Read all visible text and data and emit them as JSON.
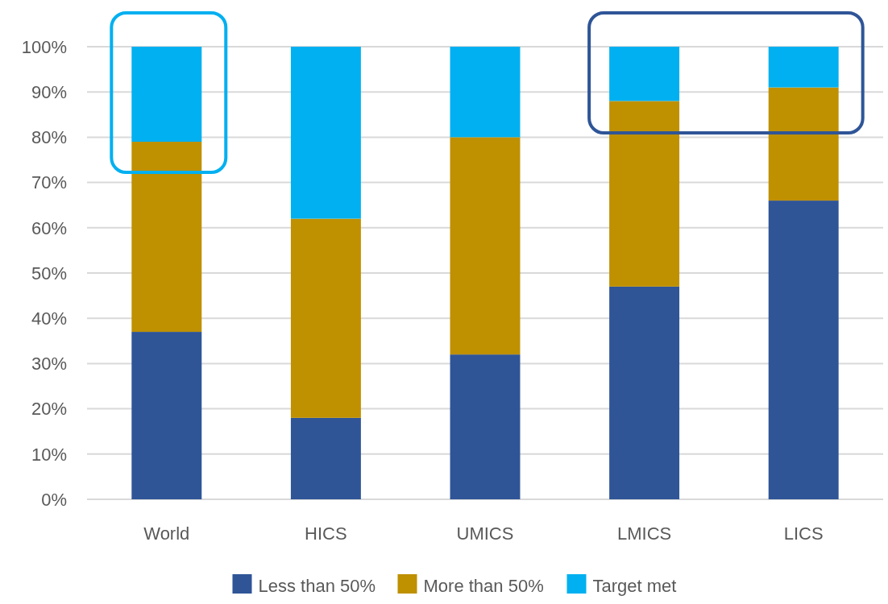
{
  "chart_data": {
    "type": "bar",
    "stacked": true,
    "categories": [
      "World",
      "HICS",
      "UMICS",
      "LMICS",
      "LICS"
    ],
    "series": [
      {
        "name": "Less than 50%",
        "color": "#2f5597",
        "values": [
          37,
          18,
          32,
          47,
          66
        ]
      },
      {
        "name": "More than 50%",
        "color": "#bf9000",
        "values": [
          42,
          44,
          48,
          41,
          25
        ]
      },
      {
        "name": "Target met",
        "color": "#00b0f0",
        "values": [
          21,
          38,
          20,
          12,
          9
        ]
      }
    ],
    "ylim": [
      0,
      100
    ],
    "yticks": [
      {
        "value": 0,
        "label": "0%"
      },
      {
        "value": 10,
        "label": "10%"
      },
      {
        "value": 20,
        "label": "20%"
      },
      {
        "value": 30,
        "label": "30%"
      },
      {
        "value": 40,
        "label": "40%"
      },
      {
        "value": 50,
        "label": "50%"
      },
      {
        "value": 60,
        "label": "60%"
      },
      {
        "value": 70,
        "label": "70%"
      },
      {
        "value": 80,
        "label": "80%"
      },
      {
        "value": 90,
        "label": "90%"
      },
      {
        "value": 100,
        "label": "100%"
      }
    ],
    "grid": "y",
    "legend": "bottom"
  }
}
